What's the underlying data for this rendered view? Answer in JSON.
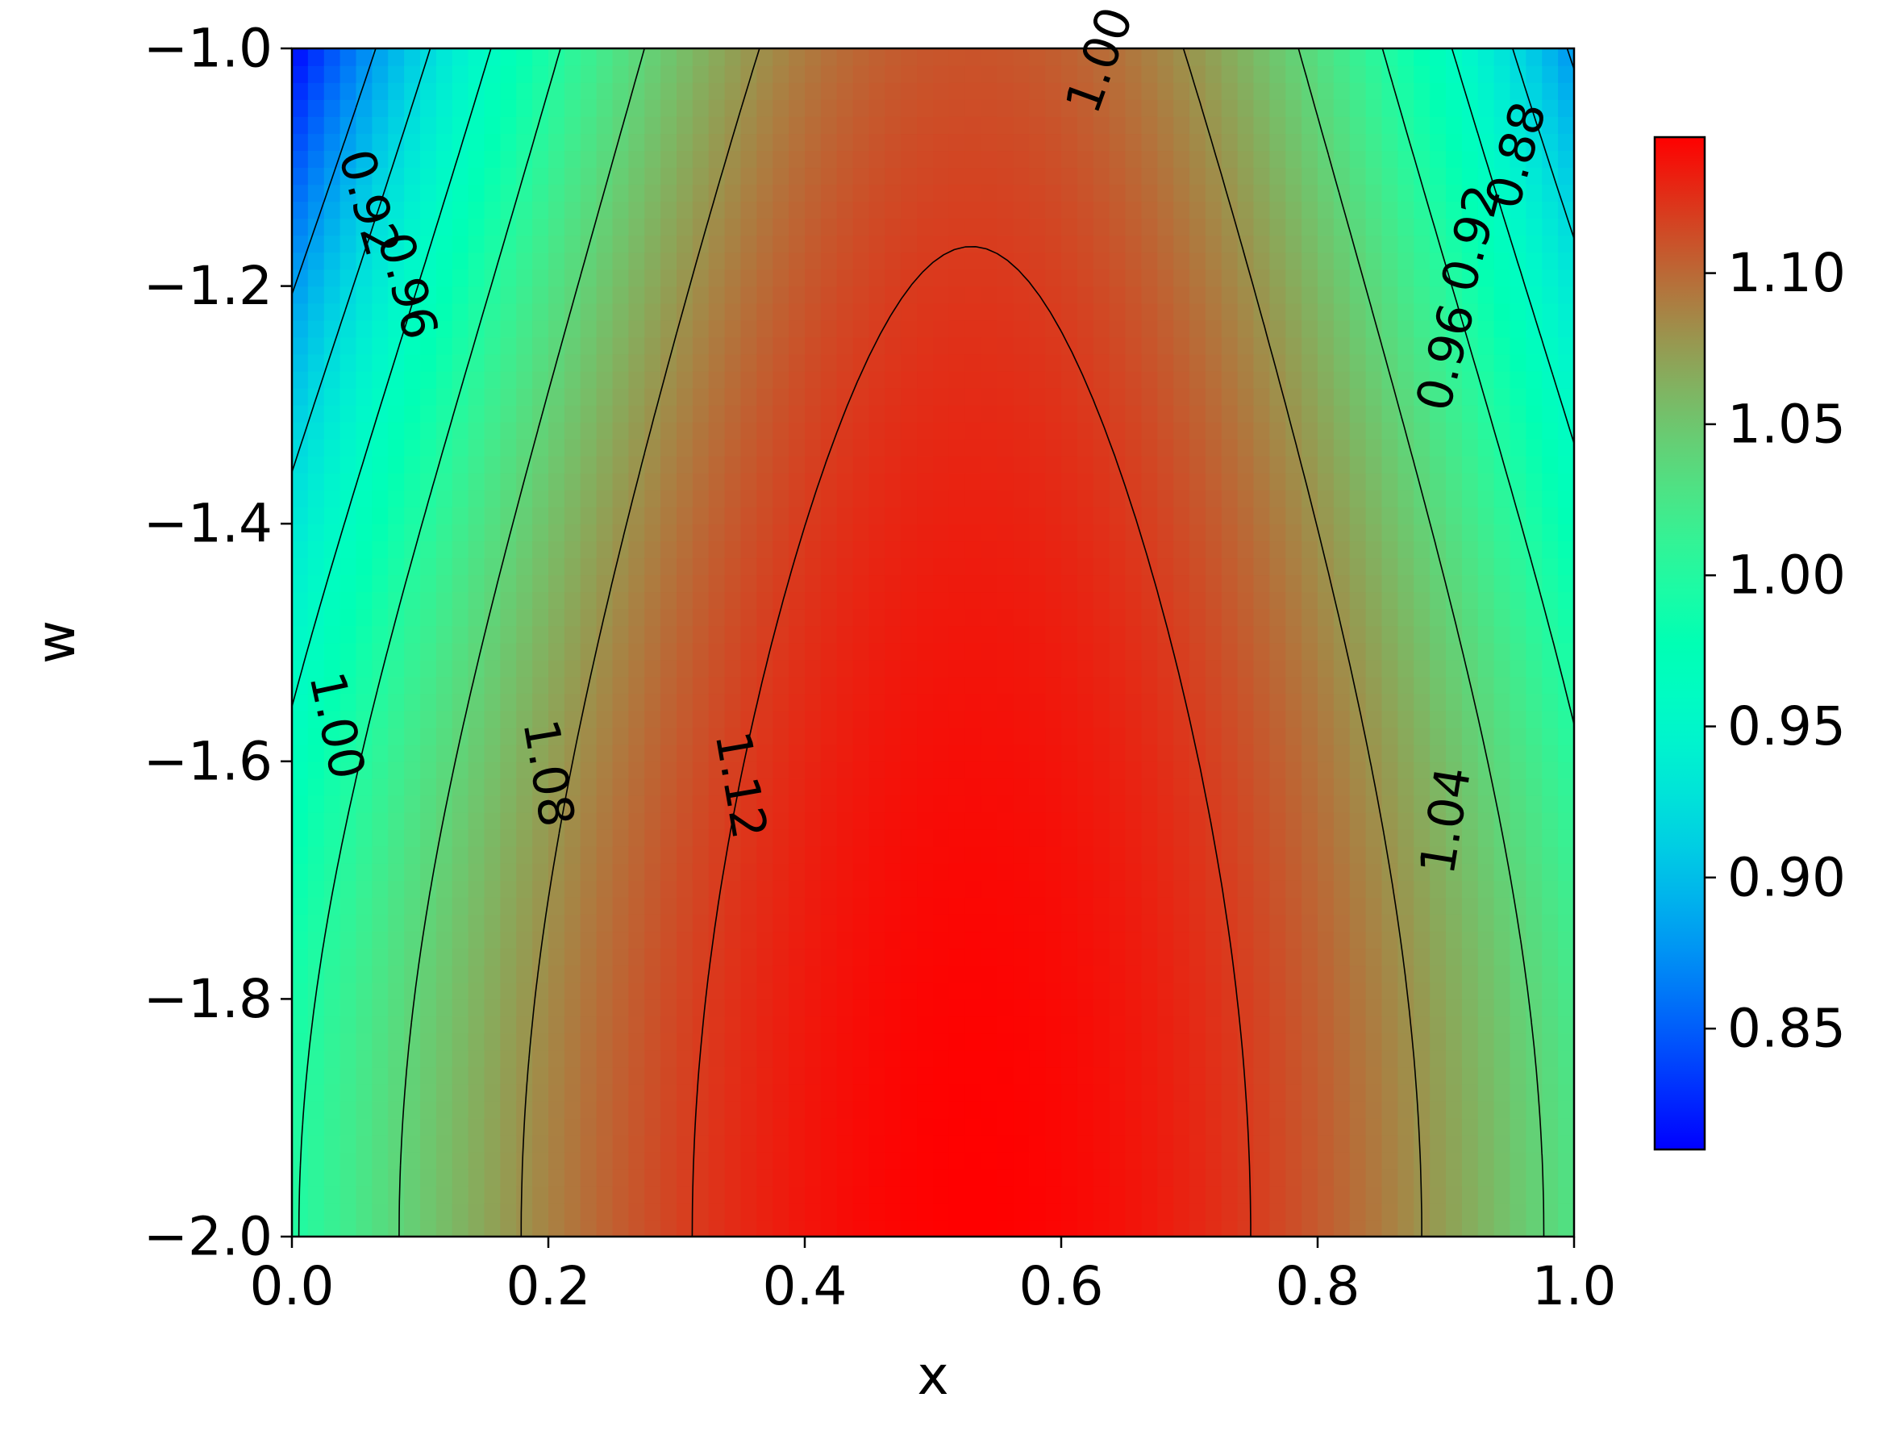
{
  "chart_data": {
    "type": "heatmap",
    "subtype": "filled-contour",
    "colormap": "rainbow",
    "title": "",
    "xlabel": "x",
    "ylabel": "w",
    "xlim": [
      0.0,
      1.0
    ],
    "ylim": [
      -2.0,
      -1.0
    ],
    "x_ticks": [
      "0.0",
      "0.2",
      "0.4",
      "0.6",
      "0.8",
      "1.0"
    ],
    "y_ticks": [
      "−1.0",
      "−1.2",
      "−1.4",
      "−1.6",
      "−1.8",
      "−2.0"
    ],
    "colorbar": {
      "range": [
        0.81,
        1.145
      ],
      "ticks": [
        "0.85",
        "0.90",
        "0.95",
        "1.00",
        "1.05",
        "1.10"
      ],
      "tick_values": [
        0.85,
        0.9,
        0.95,
        1.0,
        1.05,
        1.1
      ]
    },
    "field": {
      "description": "value peaks near x≈0.53, w=-2.0 (≈1.145) and decreases toward corners x=0/1, w=-1.0 (≈0.81)",
      "max": 1.145,
      "min": 0.81
    },
    "contour_levels": [
      0.88,
      0.92,
      0.96,
      1.0,
      1.04,
      1.08,
      1.12
    ],
    "contour_labels": [
      {
        "text": "0.92",
        "x": 0.06,
        "w": -1.13
      },
      {
        "text": "0.96",
        "x": 0.09,
        "w": -1.2
      },
      {
        "text": "1.00",
        "x": 0.035,
        "w": -1.57
      },
      {
        "text": "1.08",
        "x": 0.2,
        "w": -1.61
      },
      {
        "text": "1.12",
        "x": 0.35,
        "w": -1.62
      },
      {
        "text": "1.00",
        "x": 0.63,
        "w": -1.01
      },
      {
        "text": "0.88",
        "x": 0.955,
        "w": -1.09
      },
      {
        "text": "0.92",
        "x": 0.92,
        "w": -1.16
      },
      {
        "text": "0.96",
        "x": 0.9,
        "w": -1.26
      },
      {
        "text": "1.04",
        "x": 0.9,
        "w": -1.65
      }
    ]
  }
}
